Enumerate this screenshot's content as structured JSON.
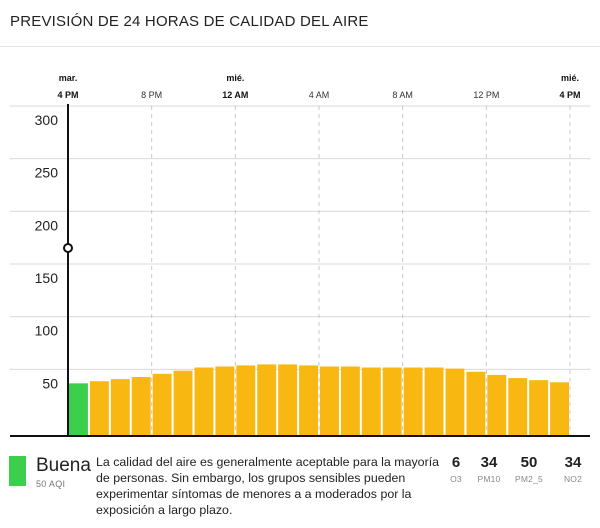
{
  "header": {
    "title": "PREVISIÓN DE 24 HORAS DE CALIDAD DEL AIRE"
  },
  "chart_data": {
    "type": "bar",
    "x_ticks": [
      {
        "hour": 0,
        "day": "mar.",
        "time": "4 PM"
      },
      {
        "hour": 4,
        "day": "",
        "time": "8 PM"
      },
      {
        "hour": 8,
        "day": "mié.",
        "time": "12 AM"
      },
      {
        "hour": 12,
        "day": "",
        "time": "4 AM"
      },
      {
        "hour": 16,
        "day": "",
        "time": "8 AM"
      },
      {
        "hour": 20,
        "day": "",
        "time": "12 PM"
      },
      {
        "hour": 24,
        "day": "mié.",
        "time": "4 PM"
      }
    ],
    "y_ticks": [
      50,
      100,
      150,
      200,
      250,
      300
    ],
    "ylim": [
      0,
      310
    ],
    "values": [
      50,
      52,
      54,
      56,
      59,
      62,
      65,
      66,
      67,
      68,
      68,
      67,
      66,
      66,
      65,
      65,
      65,
      65,
      64,
      61,
      58,
      55,
      53,
      51
    ],
    "current_marker": 175,
    "colors": {
      "good": "#3ccf4e",
      "moderate": "#f9b712",
      "axis": "#111111",
      "grid": "#d9d9d9"
    }
  },
  "summary": {
    "level": "Buena",
    "aqi": "50 AQI",
    "color": "#3ccf4e",
    "description": "La calidad del aire es generalmente aceptable para la mayoría de personas. Sin embargo, los grupos sensibles pueden experimentar síntomas de menores a a moderados por la exposición a largo plazo."
  },
  "pollutants": [
    {
      "value": "6",
      "name": "O3"
    },
    {
      "value": "34",
      "name": "PM10"
    },
    {
      "value": "50",
      "name": "PM2_5"
    },
    {
      "value": "34",
      "name": "NO2"
    }
  ]
}
